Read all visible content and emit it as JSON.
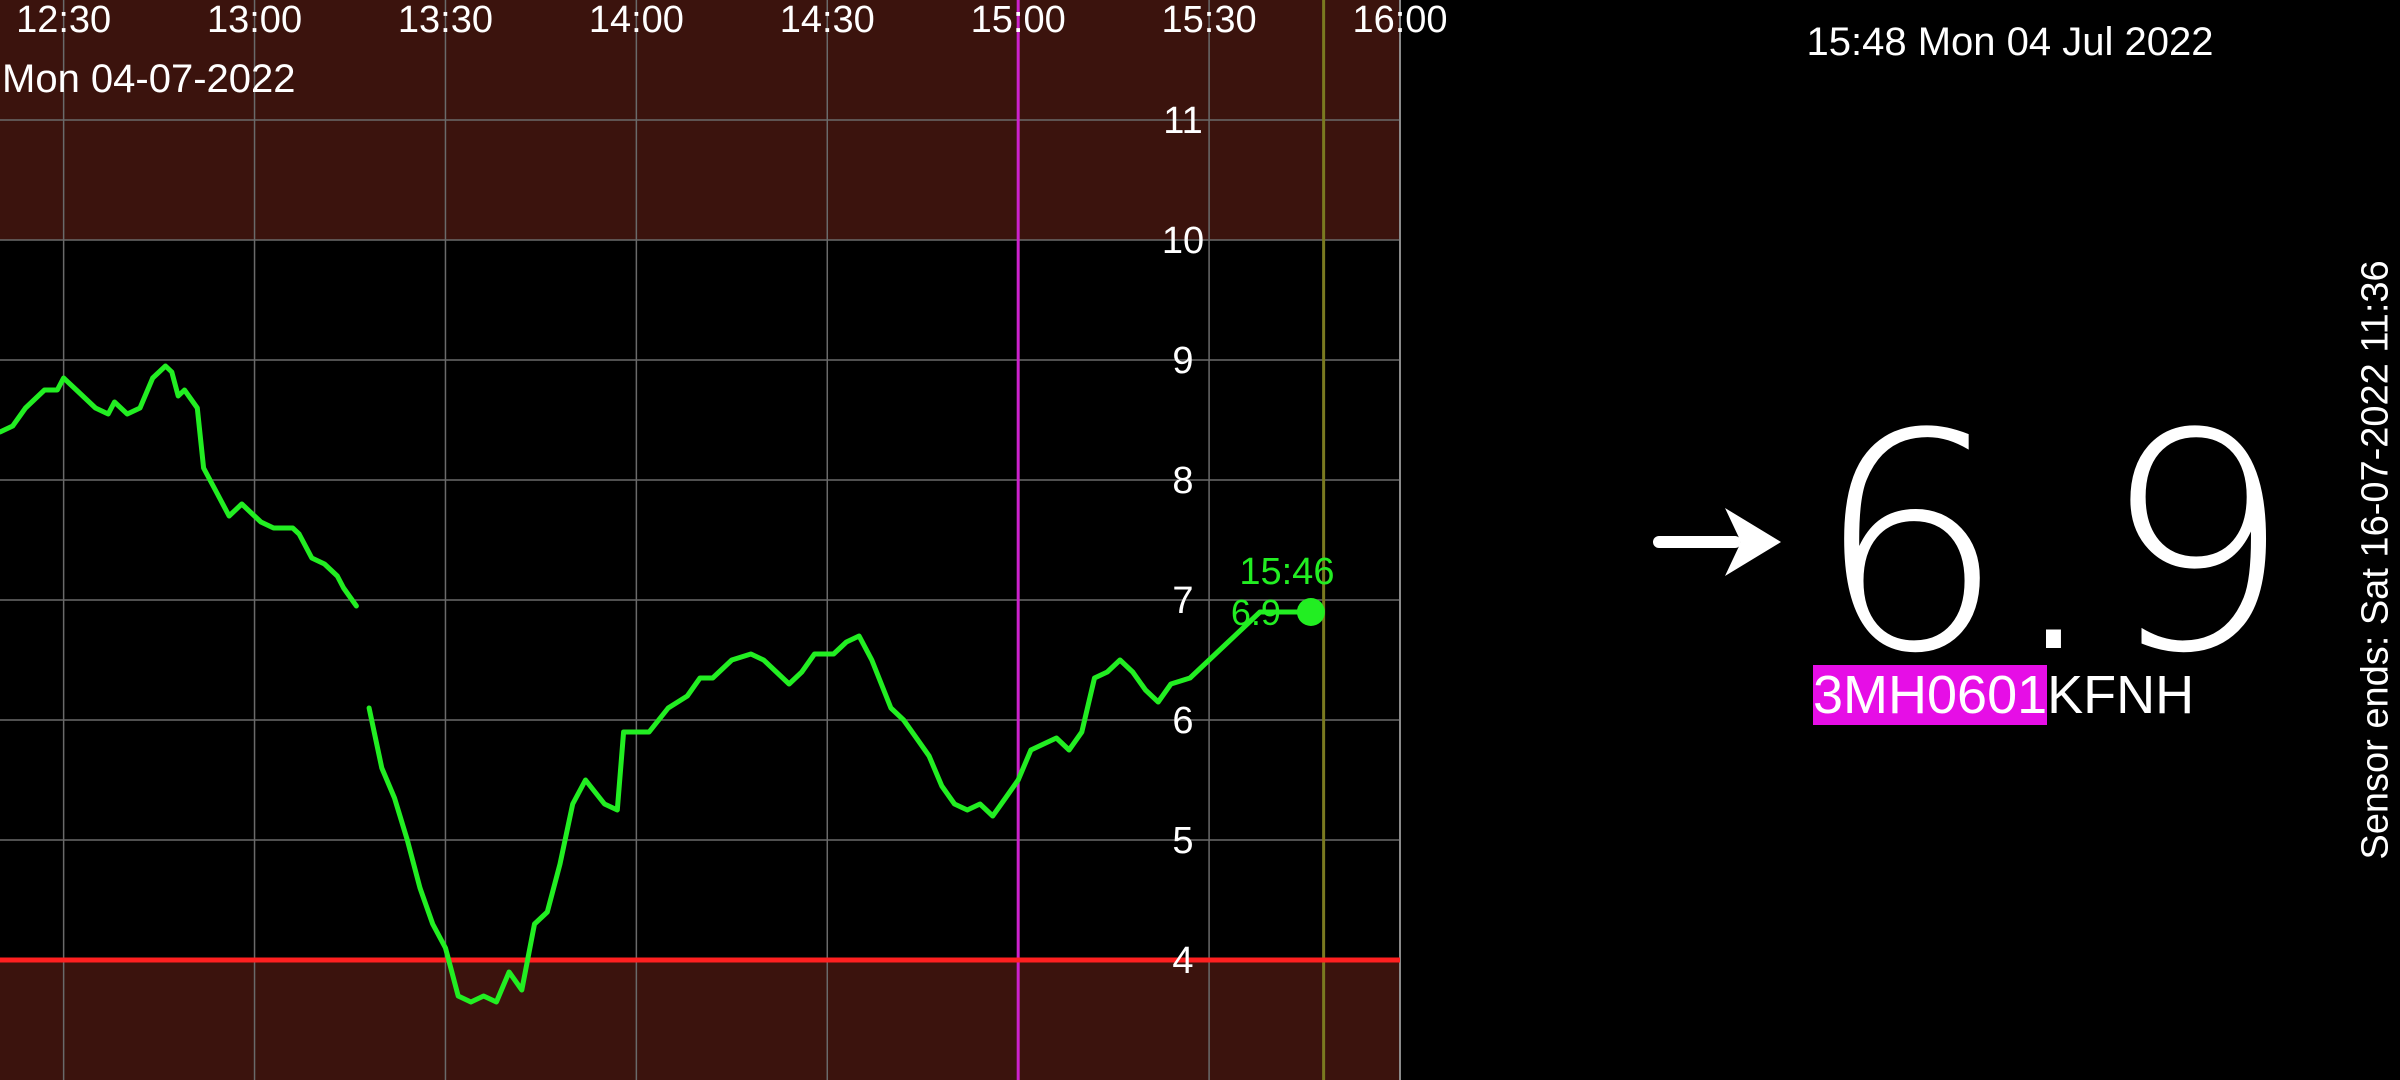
{
  "status": {
    "clock": "15:48 Mon 04 Jul 2022",
    "trend_arrow_icon": "arrow-right-icon",
    "current_reading": "6.9",
    "sensor_id_highlight": "3MH0601",
    "sensor_id_rest": "KFNH",
    "sensor_ends": "Sensor ends: Sat 16-07-2022 11:36",
    "highlight_color": "#e60ee6"
  },
  "chart_data": {
    "type": "line",
    "date_label": "Mon 04-07-2022",
    "x_tick_labels": [
      "12:30",
      "13:00",
      "13:30",
      "14:00",
      "14:30",
      "15:00",
      "15:30",
      "16:00"
    ],
    "y_tick_labels": [
      "4",
      "5",
      "6",
      "7",
      "8",
      "9",
      "10",
      "11"
    ],
    "xlim": [
      "12:20",
      "16:00"
    ],
    "ylim": [
      3.0,
      12.0
    ],
    "low_threshold": 4,
    "high_threshold": 10,
    "marker_lines": [
      "15:00",
      "15:48"
    ],
    "last_point": {
      "time": "15:46",
      "value": "6.9"
    },
    "colors": {
      "line": "#22ee22",
      "low_line": "#ff2020",
      "out_of_range_bg": "#3b130d",
      "marker_magenta": "#cc22cc",
      "marker_olive": "#7a7a20"
    },
    "series": [
      {
        "segment": 1,
        "points": [
          [
            "12:20",
            8.4
          ],
          [
            "12:22",
            8.45
          ],
          [
            "12:24",
            8.6
          ],
          [
            "12:27",
            8.75
          ],
          [
            "12:29",
            8.75
          ],
          [
            "12:30",
            8.85
          ],
          [
            "12:32",
            8.75
          ],
          [
            "12:35",
            8.6
          ],
          [
            "12:37",
            8.55
          ],
          [
            "12:38",
            8.65
          ],
          [
            "12:40",
            8.55
          ],
          [
            "12:42",
            8.6
          ],
          [
            "12:44",
            8.85
          ],
          [
            "12:46",
            8.95
          ],
          [
            "12:47",
            8.9
          ],
          [
            "12:48",
            8.7
          ],
          [
            "12:49",
            8.75
          ],
          [
            "12:51",
            8.6
          ],
          [
            "12:52",
            8.1
          ],
          [
            "12:54",
            7.9
          ],
          [
            "12:56",
            7.7
          ],
          [
            "12:58",
            7.8
          ],
          [
            "13:00",
            7.7
          ],
          [
            "13:01",
            7.65
          ],
          [
            "13:03",
            7.6
          ],
          [
            "13:04",
            7.6
          ],
          [
            "13:06",
            7.6
          ],
          [
            "13:07",
            7.55
          ],
          [
            "13:09",
            7.35
          ],
          [
            "13:11",
            7.3
          ],
          [
            "13:13",
            7.2
          ],
          [
            "13:14",
            7.1
          ],
          [
            "13:16",
            6.95
          ]
        ]
      },
      {
        "segment": 2,
        "points": [
          [
            "13:18",
            6.1
          ],
          [
            "13:20",
            5.6
          ],
          [
            "13:22",
            5.35
          ],
          [
            "13:24",
            5.0
          ],
          [
            "13:26",
            4.6
          ],
          [
            "13:28",
            4.3
          ],
          [
            "13:30",
            4.1
          ],
          [
            "13:32",
            3.7
          ],
          [
            "13:34",
            3.65
          ],
          [
            "13:36",
            3.7
          ],
          [
            "13:38",
            3.65
          ],
          [
            "13:40",
            3.9
          ],
          [
            "13:42",
            3.75
          ],
          [
            "13:44",
            4.3
          ],
          [
            "13:46",
            4.4
          ],
          [
            "13:48",
            4.8
          ],
          [
            "13:50",
            5.3
          ],
          [
            "13:52",
            5.5
          ],
          [
            "13:55",
            5.3
          ],
          [
            "13:57",
            5.25
          ],
          [
            "13:58",
            5.9
          ],
          [
            "14:00",
            5.9
          ],
          [
            "14:02",
            5.9
          ],
          [
            "14:05",
            6.1
          ],
          [
            "14:08",
            6.2
          ],
          [
            "14:10",
            6.35
          ],
          [
            "14:12",
            6.35
          ],
          [
            "14:15",
            6.5
          ],
          [
            "14:18",
            6.55
          ],
          [
            "14:20",
            6.5
          ],
          [
            "14:22",
            6.4
          ],
          [
            "14:24",
            6.3
          ],
          [
            "14:26",
            6.4
          ],
          [
            "14:28",
            6.55
          ],
          [
            "14:31",
            6.55
          ],
          [
            "14:33",
            6.65
          ],
          [
            "14:35",
            6.7
          ],
          [
            "14:37",
            6.5
          ],
          [
            "14:40",
            6.1
          ],
          [
            "14:42",
            6.0
          ],
          [
            "14:44",
            5.85
          ],
          [
            "14:46",
            5.7
          ],
          [
            "14:48",
            5.45
          ],
          [
            "14:50",
            5.3
          ],
          [
            "14:52",
            5.25
          ],
          [
            "14:54",
            5.3
          ],
          [
            "14:56",
            5.2
          ],
          [
            "14:58",
            5.35
          ],
          [
            "15:00",
            5.5
          ],
          [
            "15:02",
            5.75
          ],
          [
            "15:04",
            5.8
          ],
          [
            "15:06",
            5.85
          ],
          [
            "15:08",
            5.75
          ],
          [
            "15:10",
            5.9
          ],
          [
            "15:12",
            6.35
          ],
          [
            "15:14",
            6.4
          ],
          [
            "15:16",
            6.5
          ],
          [
            "15:18",
            6.4
          ],
          [
            "15:20",
            6.25
          ],
          [
            "15:22",
            6.15
          ],
          [
            "15:24",
            6.3
          ],
          [
            "15:27",
            6.35
          ],
          [
            "15:30",
            6.5
          ],
          [
            "15:33",
            6.65
          ],
          [
            "15:36",
            6.8
          ],
          [
            "15:38",
            6.9
          ],
          [
            "15:46",
            6.9
          ]
        ]
      }
    ]
  }
}
